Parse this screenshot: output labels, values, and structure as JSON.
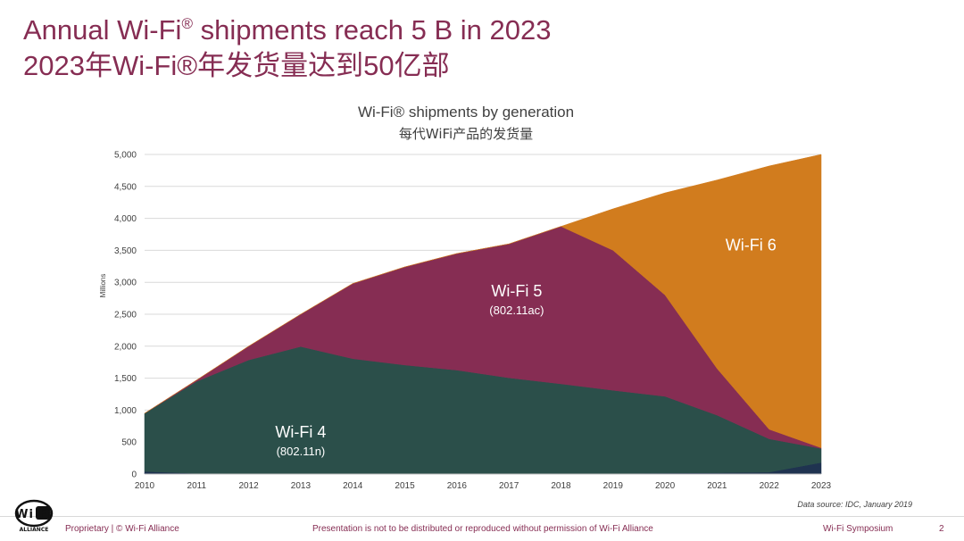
{
  "slide": {
    "title_line1_pre": "Annual Wi-Fi",
    "title_line1_sup": "®",
    "title_line1_post": " shipments reach 5 B in 2023",
    "title_line2": "2023年Wi-Fi®年发货量达到50亿部"
  },
  "footer": {
    "left": "Proprietary | © Wi-Fi Alliance",
    "center": "Presentation is not to be distributed or reproduced without permission of Wi-Fi Alliance",
    "right": "Wi-Fi Symposium",
    "page_number": "2",
    "data_source": "Data source: IDC, January 2019",
    "logo_text": "Wi Fi",
    "logo_subtext": "ALLIANCE"
  },
  "colors": {
    "title": "#862d53",
    "wifi4": "#2b4f4a",
    "wifi5": "#862d53",
    "wifi6": "#d17c1e",
    "legacy": "#1f3350",
    "grid": "#d9d9d9",
    "axis_text": "#404040"
  },
  "chart_data": {
    "type": "area",
    "stacked": true,
    "title": "Wi-Fi® shipments by generation",
    "subtitle": "每代WiFi产品的发货量",
    "xlabel": "",
    "ylabel": "Millions",
    "x": [
      2010,
      2011,
      2012,
      2013,
      2014,
      2015,
      2016,
      2017,
      2018,
      2019,
      2020,
      2021,
      2022,
      2023
    ],
    "ylim": [
      0,
      5000
    ],
    "yticks": [
      0,
      500,
      1000,
      1500,
      2000,
      2500,
      3000,
      3500,
      4000,
      4500,
      5000
    ],
    "ytick_labels": [
      "0",
      "500",
      "1,000",
      "1,500",
      "2,000",
      "2,500",
      "3,000",
      "3,500",
      "4,000",
      "4,500",
      "5,000"
    ],
    "grid": true,
    "series": [
      {
        "key": "legacy",
        "name": "",
        "color": "#1f3350",
        "values": [
          40,
          10,
          5,
          5,
          5,
          5,
          5,
          5,
          10,
          10,
          15,
          20,
          30,
          180
        ]
      },
      {
        "key": "wifi4",
        "name": "Wi-Fi 4",
        "sublabel": "(802.11n)",
        "color": "#2b4f4a",
        "values": [
          910,
          1440,
          1780,
          1990,
          1800,
          1700,
          1620,
          1500,
          1400,
          1300,
          1200,
          900,
          520,
          220
        ]
      },
      {
        "key": "wifi5",
        "name": "Wi-Fi 5",
        "sublabel": "(802.11ac)",
        "color": "#862d53",
        "values": [
          0,
          20,
          215,
          505,
          1175,
          1535,
          1825,
          2095,
          2465,
          2190,
          1585,
          730,
          150,
          10
        ]
      },
      {
        "key": "wifi6",
        "name": "Wi-Fi 6",
        "color": "#d17c1e",
        "values": [
          0,
          0,
          0,
          0,
          0,
          0,
          0,
          0,
          0,
          650,
          1600,
          2950,
          4120,
          4590
        ]
      }
    ],
    "labels": [
      {
        "series": "wifi4",
        "x": 2013,
        "y": 570
      },
      {
        "series": "wifi5",
        "x": 2017.15,
        "y": 2780
      },
      {
        "series": "wifi6",
        "x": 2021.65,
        "y": 3500
      }
    ]
  }
}
